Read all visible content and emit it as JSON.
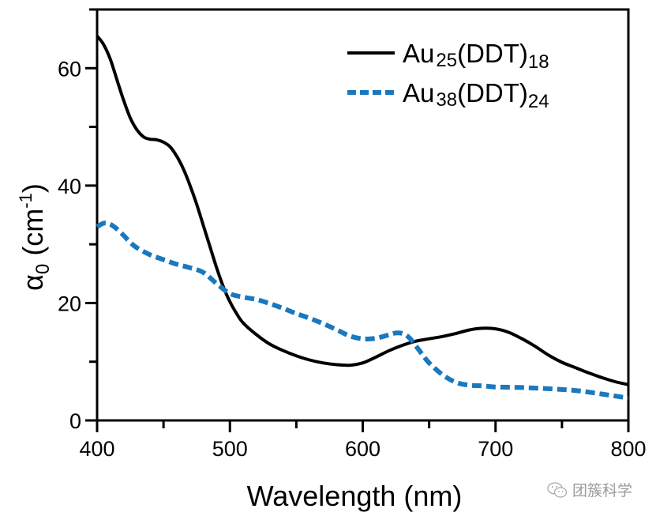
{
  "chart_data": {
    "type": "line",
    "title": "",
    "xlabel": "Wavelength (nm)",
    "ylabel": "α0 (cm-1)",
    "ylabel_parts": {
      "main": "α",
      "sub": "0",
      "unit_open": " (cm",
      "sup": "-1",
      "unit_close": ")"
    },
    "xlim": [
      400,
      800
    ],
    "ylim": [
      0,
      70
    ],
    "x_ticks": [
      400,
      500,
      600,
      700,
      800
    ],
    "x_tick_labels": [
      "400",
      "500",
      "600",
      "700",
      "800"
    ],
    "x_minor_ticks": [
      450,
      550,
      650,
      750
    ],
    "y_ticks": [
      0,
      20,
      40,
      60
    ],
    "y_tick_labels": [
      "0",
      "20",
      "40",
      "60"
    ],
    "y_minor_ticks": [
      10,
      30,
      50
    ],
    "grid": false,
    "legend_position": "top-right",
    "series": [
      {
        "name": "Au25(DDT)18",
        "label_parts": {
          "a": "Au",
          "sub1": "25",
          "b": "(DDT)",
          "sub2": "18"
        },
        "style": "solid",
        "color": "#000000",
        "x": [
          400,
          405,
          410,
          415,
          420,
          425,
          430,
          435,
          440,
          445,
          450,
          455,
          460,
          465,
          470,
          475,
          480,
          485,
          490,
          495,
          500,
          505,
          510,
          520,
          530,
          540,
          550,
          560,
          570,
          580,
          590,
          600,
          610,
          620,
          630,
          640,
          650,
          660,
          670,
          680,
          690,
          700,
          710,
          720,
          730,
          740,
          750,
          760,
          770,
          780,
          790,
          800
        ],
        "y": [
          65.5,
          64.0,
          61.5,
          58.0,
          54.5,
          51.5,
          49.5,
          48.3,
          47.9,
          47.8,
          47.4,
          46.6,
          45.0,
          42.8,
          40.0,
          36.8,
          33.2,
          29.6,
          26.0,
          22.8,
          20.2,
          18.2,
          16.6,
          14.6,
          13.0,
          11.9,
          11.0,
          10.3,
          9.8,
          9.5,
          9.4,
          9.8,
          10.8,
          11.9,
          12.8,
          13.5,
          13.9,
          14.3,
          14.8,
          15.4,
          15.7,
          15.6,
          15.0,
          13.9,
          12.6,
          11.1,
          9.9,
          9.0,
          8.1,
          7.3,
          6.6,
          6.1
        ]
      },
      {
        "name": "Au38(DDT)24",
        "label_parts": {
          "a": "Au",
          "sub1": "38",
          "b": "(DDT)",
          "sub2": "24"
        },
        "style": "dashed",
        "color": "#1a78be",
        "x": [
          400,
          405,
          410,
          415,
          420,
          425,
          430,
          440,
          450,
          460,
          470,
          480,
          490,
          500,
          510,
          520,
          530,
          540,
          550,
          560,
          570,
          580,
          590,
          600,
          610,
          620,
          625,
          630,
          635,
          640,
          645,
          650,
          660,
          670,
          680,
          690,
          700,
          720,
          740,
          760,
          780,
          800
        ],
        "y": [
          33.0,
          33.6,
          33.4,
          32.6,
          31.5,
          30.3,
          29.4,
          28.2,
          27.4,
          26.6,
          26.0,
          25.2,
          23.3,
          21.6,
          21.0,
          20.6,
          19.9,
          19.1,
          18.2,
          17.4,
          16.5,
          15.5,
          14.4,
          13.9,
          14.0,
          14.6,
          14.9,
          14.8,
          14.1,
          12.7,
          11.2,
          9.8,
          7.8,
          6.5,
          6.0,
          5.9,
          5.7,
          5.6,
          5.4,
          5.1,
          4.5,
          3.8
        ]
      }
    ]
  },
  "watermark": {
    "text": "团簇科学",
    "icon": "wechat-icon"
  }
}
